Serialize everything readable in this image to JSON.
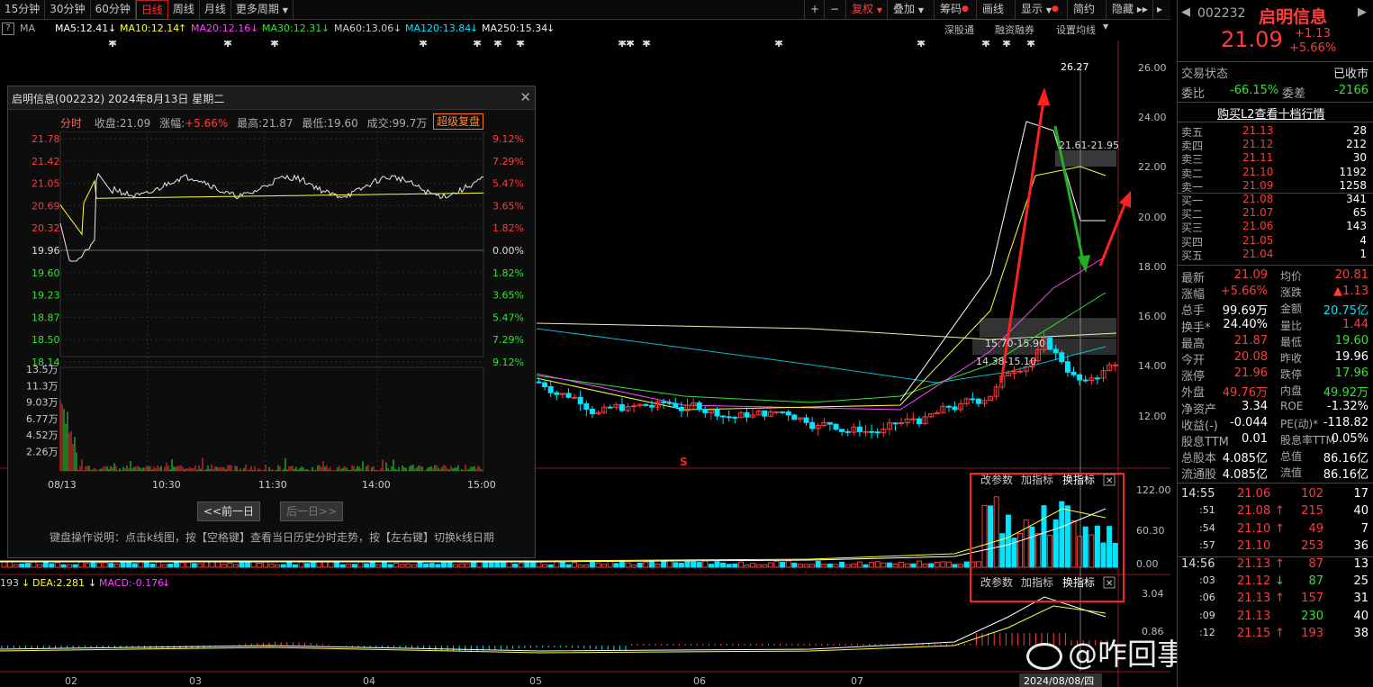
{
  "toolbar": {
    "periods": [
      "15分钟",
      "30分钟",
      "60分钟",
      "日线",
      "周线",
      "月线",
      "更多周期"
    ],
    "active_period": "日线",
    "right_items": [
      "复权",
      "叠加",
      "筹码",
      "画线",
      "显示",
      "简约",
      "隐藏"
    ],
    "plus": "+",
    "minus": "−"
  },
  "ma_row": {
    "ma_label": "MA",
    "ma5": "MA5:12.41",
    "ma10": "MA10:12.14",
    "ma20": "MA20:12.16",
    "ma30": "MA30:12.31",
    "ma60": "MA60:13.06",
    "ma120": "MA120:13.84",
    "ma250": "MA250:15.34",
    "links": [
      "深股通",
      "融资融券",
      "设置均线"
    ]
  },
  "chart_annotations": {
    "high_label": "26.27",
    "zone_upper": "21.61-21.95",
    "zone_mid": "15.70-15.90",
    "zone_low": "14.38-15.10"
  },
  "price_axis": [
    "26.00",
    "24.00",
    "22.00",
    "20.00",
    "18.00",
    "16.00",
    "14.00",
    "12.00"
  ],
  "volume_axis": [
    "122.00",
    "60.30",
    "0.00"
  ],
  "macd_axis": [
    "3.04",
    "0.86"
  ],
  "macd_row": {
    "prefix": "193",
    "dea": "DEA:2.281",
    "macd": "MACD:-0.176"
  },
  "indicator_controls": [
    "改参数",
    "加指标",
    "换指标"
  ],
  "month_labels": [
    "02",
    "03",
    "04",
    "05",
    "06",
    "07"
  ],
  "crosshair_date": "2024/08/08/四",
  "watermark": "@咋回事儿咋整啊",
  "popup": {
    "title": "启明信息(002232) 2024年8月13日 星期二",
    "info_label": "分时",
    "close_label": "收盘:21.09",
    "change_label": "涨幅:",
    "change_value": "+5.66%",
    "high_label": "最高:21.87",
    "low_label": "最低:19.60",
    "volume_label": "成交:99.7万",
    "super_button": "超级复盘",
    "prices": [
      "21.78",
      "21.42",
      "21.05",
      "20.69",
      "20.32",
      "19.96",
      "19.60",
      "19.23",
      "18.87",
      "18.50",
      "18.14"
    ],
    "pcts": [
      "9.12%",
      "7.29%",
      "5.47%",
      "3.65%",
      "1.82%",
      "0.00%",
      "1.82%",
      "3.65%",
      "5.47%",
      "7.29%",
      "9.12%"
    ],
    "vol_labels": [
      "13.5万",
      "11.3万",
      "9.03万",
      "6.77万",
      "4.52万",
      "2.26万"
    ],
    "time_labels": [
      "08/13",
      "10:30",
      "11:30",
      "14:00",
      "15:00"
    ],
    "prev_day": "<<前一日",
    "next_day": "后一日>>",
    "help": "键盘操作说明：点击k线图，按【空格键】查看当日历史分时走势，按【左右键】切换k线日期"
  },
  "right_panel": {
    "code": "002232",
    "name": "启明信息",
    "price": "21.09",
    "change": "+1.13",
    "change_pct": "+5.66%",
    "status_label": "交易状态",
    "status_value": "已收市",
    "weibi_label": "委比",
    "weibi_value": "-66.15%",
    "weicha_label": "委差",
    "weicha_value": "-2166",
    "l2_button": "购买L2查看十档行情",
    "asks": [
      {
        "label": "卖五",
        "price": "21.13",
        "vol": "28"
      },
      {
        "label": "卖四",
        "price": "21.12",
        "vol": "212"
      },
      {
        "label": "卖三",
        "price": "21.11",
        "vol": "30"
      },
      {
        "label": "卖二",
        "price": "21.10",
        "vol": "1192"
      },
      {
        "label": "卖一",
        "price": "21.09",
        "vol": "1258"
      }
    ],
    "bids": [
      {
        "label": "买一",
        "price": "21.08",
        "vol": "341"
      },
      {
        "label": "买二",
        "price": "21.07",
        "vol": "65"
      },
      {
        "label": "买三",
        "price": "21.06",
        "vol": "143"
      },
      {
        "label": "买四",
        "price": "21.05",
        "vol": "4"
      },
      {
        "label": "买五",
        "price": "21.04",
        "vol": "1"
      }
    ],
    "stats": [
      {
        "l1": "最新",
        "v1": "21.09",
        "c1": "red",
        "l2": "均价",
        "v2": "20.81",
        "c2": "red"
      },
      {
        "l1": "涨幅",
        "v1": "+5.66%",
        "c1": "red",
        "l2": "涨跌",
        "v2": "▲1.13",
        "c2": "red"
      },
      {
        "l1": "总手",
        "v1": "99.69万",
        "c1": "white",
        "l2": "金额",
        "v2": "20.75亿",
        "c2": "cyan"
      },
      {
        "l1": "换手*",
        "v1": "24.40%",
        "c1": "white",
        "l2": "量比",
        "v2": "1.44",
        "c2": "red"
      },
      {
        "l1": "最高",
        "v1": "21.87",
        "c1": "red",
        "l2": "最低",
        "v2": "19.60",
        "c2": "green"
      },
      {
        "l1": "今开",
        "v1": "20.08",
        "c1": "red",
        "l2": "昨收",
        "v2": "19.96",
        "c2": "white"
      },
      {
        "l1": "涨停",
        "v1": "21.96",
        "c1": "red",
        "l2": "跌停",
        "v2": "17.96",
        "c2": "green"
      },
      {
        "l1": "外盘",
        "v1": "49.76万",
        "c1": "red",
        "l2": "内盘",
        "v2": "49.92万",
        "c2": "green"
      },
      {
        "l1": "净资产",
        "v1": "3.34",
        "c1": "white",
        "l2": "ROE",
        "v2": "-1.32%",
        "c2": "white"
      },
      {
        "l1": "收益(-)",
        "v1": "-0.044",
        "c1": "white",
        "l2": "PE(动)*",
        "v2": "-118.82",
        "c2": "white"
      },
      {
        "l1": "股息TTM",
        "v1": "0.01",
        "c1": "white",
        "l2": "股息率TTM",
        "v2": "0.05%",
        "c2": "white"
      },
      {
        "l1": "总股本",
        "v1": "4.085亿",
        "c1": "white",
        "l2": "总值",
        "v2": "86.16亿",
        "c2": "white"
      },
      {
        "l1": "流通股",
        "v1": "4.085亿",
        "c1": "white",
        "l2": "流值",
        "v2": "86.16亿",
        "c2": "white"
      }
    ],
    "ticks": [
      {
        "time": "14:55",
        "price": "21.06",
        "dir": "",
        "vol": "102",
        "vc": "red",
        "n": "17"
      },
      {
        "time": ":51",
        "price": "21.08",
        "dir": "↑",
        "vol": "215",
        "vc": "red",
        "n": "40"
      },
      {
        "time": ":54",
        "price": "21.10",
        "dir": "↑",
        "vol": "49",
        "vc": "red",
        "n": "7"
      },
      {
        "time": ":57",
        "price": "21.10",
        "dir": "",
        "vol": "253",
        "vc": "red",
        "n": "36"
      },
      {
        "time": "14:56",
        "price": "21.13",
        "dir": "↑",
        "vol": "87",
        "vc": "red",
        "n": "13"
      },
      {
        "time": ":03",
        "price": "21.12",
        "dir": "↓",
        "vol": "87",
        "vc": "green",
        "n": "25"
      },
      {
        "time": ":06",
        "price": "21.13",
        "dir": "↑",
        "vol": "157",
        "vc": "red",
        "n": "31"
      },
      {
        "time": ":09",
        "price": "21.13",
        "dir": "",
        "vol": "230",
        "vc": "green",
        "n": "40"
      },
      {
        "time": ":12",
        "price": "21.15",
        "dir": "↑",
        "vol": "193",
        "vc": "red",
        "n": "38"
      }
    ]
  }
}
